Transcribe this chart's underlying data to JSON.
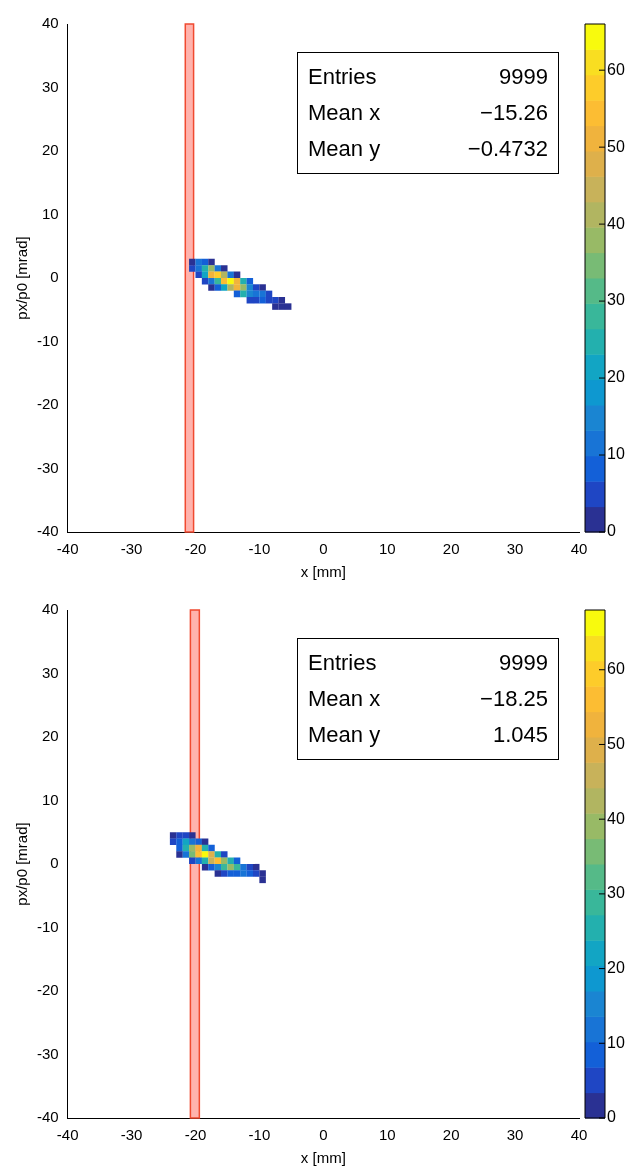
{
  "chart_data": [
    {
      "type": "scatter",
      "xlabel": "x [mm]",
      "ylabel": "px/p0 [mrad]",
      "marker": "square",
      "grid": false,
      "legend": false,
      "xlim": [
        -40,
        40
      ],
      "xticks": [
        -40,
        -30,
        -20,
        -10,
        0,
        10,
        20,
        30,
        40
      ],
      "ylim": [
        -40,
        40
      ],
      "yticks": [
        -40,
        -30,
        -20,
        -10,
        0,
        10,
        20,
        30,
        40
      ],
      "clim": [
        0,
        66
      ],
      "cticks": [
        0,
        10,
        20,
        30,
        40,
        50,
        60
      ],
      "x": [
        -20.5,
        -19.5,
        -18.5,
        -17.5,
        -20.5,
        -19.5,
        -18.5,
        -17.5,
        -16.5,
        -15.5,
        -19.5,
        -18.5,
        -17.5,
        -16.5,
        -15.5,
        -14.5,
        -13.5,
        -18.5,
        -17.5,
        -16.5,
        -15.5,
        -14.5,
        -13.5,
        -12.5,
        -11.5,
        -17.5,
        -16.5,
        -15.5,
        -14.5,
        -13.5,
        -12.5,
        -11.5,
        -10.5,
        -9.5,
        -13.5,
        -12.5,
        -11.5,
        -10.5,
        -9.5,
        -8.5,
        -11.5,
        -10.5,
        -9.5,
        -8.5,
        -7.5,
        -6.5,
        -7.5,
        -6.5,
        -5.5
      ],
      "values": [
        2.5,
        2.5,
        2.5,
        2.5,
        1.5,
        1.5,
        1.5,
        1.5,
        1.5,
        1.5,
        0.5,
        0.5,
        0.5,
        0.5,
        0.5,
        0.5,
        0.5,
        -0.5,
        -0.5,
        -0.5,
        -0.5,
        -0.5,
        -0.5,
        -0.5,
        -0.5,
        -1.5,
        -1.5,
        -1.5,
        -1.5,
        -1.5,
        -1.5,
        -1.5,
        -1.5,
        -1.5,
        -2.5,
        -2.5,
        -2.5,
        -2.5,
        -2.5,
        -2.5,
        -3.5,
        -3.5,
        -3.5,
        -3.5,
        -3.5,
        -3.5,
        -4.5,
        -4.5,
        -4.5
      ],
      "cvalues": [
        3,
        10,
        8,
        3,
        4,
        12,
        25,
        38,
        10,
        3,
        6,
        20,
        50,
        58,
        40,
        12,
        3,
        4,
        12,
        28,
        55,
        65,
        50,
        25,
        8,
        3,
        8,
        20,
        40,
        52,
        38,
        15,
        6,
        3,
        8,
        25,
        15,
        10,
        12,
        5,
        4,
        6,
        8,
        6,
        4,
        3,
        3,
        3,
        2
      ],
      "bands": [
        {
          "axis": "x",
          "from": -21.6,
          "to": -20.3,
          "color": "#ffb3ad"
        }
      ],
      "annotations": [
        "Entries",
        "9999",
        "Mean x",
        "−15.26",
        "Mean y",
        "−0.4732"
      ]
    },
    {
      "type": "scatter",
      "xlabel": "x [mm]",
      "ylabel": "px/p0 [mrad]",
      "marker": "square",
      "grid": false,
      "legend": false,
      "xlim": [
        -40,
        40
      ],
      "xticks": [
        -40,
        -30,
        -20,
        -10,
        0,
        10,
        20,
        30,
        40
      ],
      "ylim": [
        -40,
        40
      ],
      "yticks": [
        -40,
        -30,
        -20,
        -10,
        0,
        10,
        20,
        30,
        40
      ],
      "clim": [
        0,
        68
      ],
      "cticks": [
        0,
        10,
        20,
        30,
        40,
        50,
        60
      ],
      "x": [
        -23.5,
        -22.5,
        -21.5,
        -20.5,
        -23.5,
        -22.5,
        -21.5,
        -20.5,
        -19.5,
        -18.5,
        -22.5,
        -21.5,
        -20.5,
        -19.5,
        -18.5,
        -17.5,
        -22.5,
        -21.5,
        -20.5,
        -19.5,
        -18.5,
        -17.5,
        -16.5,
        -15.5,
        -20.5,
        -19.5,
        -18.5,
        -17.5,
        -16.5,
        -15.5,
        -14.5,
        -13.5,
        -18.5,
        -17.5,
        -16.5,
        -15.5,
        -14.5,
        -13.5,
        -12.5,
        -11.5,
        -10.5,
        -16.5,
        -15.5,
        -14.5,
        -13.5,
        -12.5,
        -11.5,
        -10.5,
        -9.5,
        -9.5
      ],
      "values": [
        4.5,
        4.5,
        4.5,
        4.5,
        3.5,
        3.5,
        3.5,
        3.5,
        3.5,
        3.5,
        2.5,
        2.5,
        2.5,
        2.5,
        2.5,
        2.5,
        1.5,
        1.5,
        1.5,
        1.5,
        1.5,
        1.5,
        1.5,
        1.5,
        0.5,
        0.5,
        0.5,
        0.5,
        0.5,
        0.5,
        0.5,
        0.5,
        -0.5,
        -0.5,
        -0.5,
        -0.5,
        -0.5,
        -0.5,
        -0.5,
        -0.5,
        -0.5,
        -1.5,
        -1.5,
        -1.5,
        -1.5,
        -1.5,
        -1.5,
        -1.5,
        -1.5,
        -2.5
      ],
      "cvalues": [
        3,
        5,
        4,
        3,
        4,
        10,
        22,
        12,
        8,
        3,
        8,
        25,
        40,
        52,
        25,
        8,
        3,
        12,
        35,
        55,
        66,
        50,
        25,
        4,
        4,
        12,
        25,
        45,
        55,
        38,
        25,
        10,
        3,
        8,
        15,
        28,
        40,
        30,
        12,
        6,
        3,
        3,
        5,
        8,
        10,
        12,
        8,
        6,
        3,
        3
      ],
      "bands": [
        {
          "axis": "x",
          "from": -20.8,
          "to": -19.4,
          "color": "#ffb3ad"
        }
      ],
      "annotations": [
        "Entries",
        "9999",
        "Mean x",
        "−18.25",
        "Mean y",
        "1.045"
      ]
    }
  ]
}
